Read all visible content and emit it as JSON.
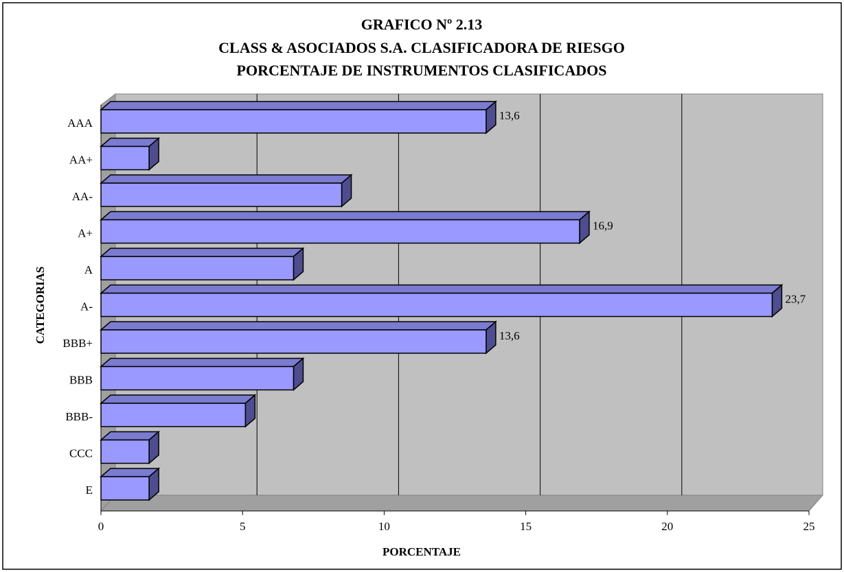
{
  "chart_data": {
    "type": "bar3d_horizontal",
    "title": [
      "GRAFICO Nº 2.13",
      "CLASS & ASOCIADOS S.A. CLASIFICADORA DE RIESGO",
      "PORCENTAJE DE INSTRUMENTOS CLASIFICADOS"
    ],
    "x_label": "PORCENTAJE",
    "y_label": "CATEGORIAS",
    "categories": [
      "AAA",
      "AA+",
      "AA-",
      "A+",
      "A",
      "A-",
      "BBB+",
      "BBB",
      "BBB-",
      "CCC",
      "E"
    ],
    "values": [
      13.6,
      1.7,
      8.5,
      16.9,
      6.8,
      23.7,
      13.6,
      6.8,
      5.1,
      1.7,
      1.7
    ],
    "value_labels": [
      "13,6",
      null,
      null,
      "16,9",
      null,
      "23,7",
      "13,6",
      null,
      null,
      null,
      null
    ],
    "color": "#9999ff",
    "xlim": [
      0,
      25
    ],
    "xticks": [
      0,
      5,
      10,
      15,
      20,
      25
    ],
    "grid": true
  }
}
